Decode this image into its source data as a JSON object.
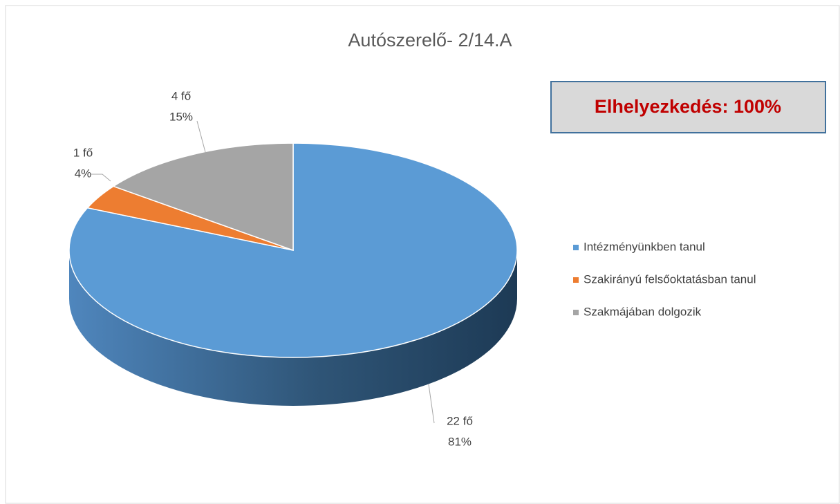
{
  "chart_data": {
    "type": "pie",
    "title": "Autószerelő- 2/14.A",
    "annotation": "Elhelyezkedés: 100%",
    "categories": [
      "Intézményünkben tanul",
      "Szakirányú felsőoktatásban tanul",
      "Szakmájában dolgozik"
    ],
    "values": [
      22,
      1,
      4
    ],
    "value_labels": [
      "22 fő",
      "1 fő",
      "4 fő"
    ],
    "percent_labels": [
      "81%",
      "4%",
      "15%"
    ],
    "colors": [
      "#5b9bd5",
      "#ed7d31",
      "#a5a5a5"
    ],
    "legend": "right"
  }
}
